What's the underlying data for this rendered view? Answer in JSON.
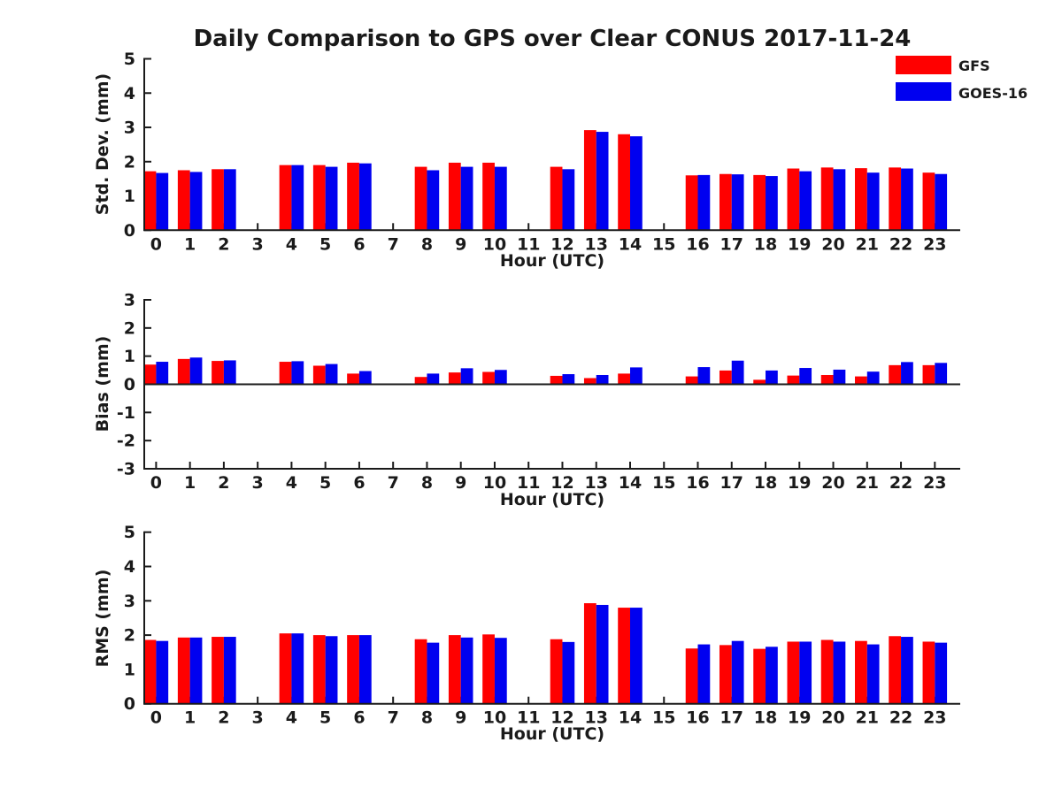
{
  "figure": {
    "title": "Daily Comparison to GPS over Clear CONUS 2017-11-24",
    "legend": {
      "items": [
        {
          "label": "GFS",
          "color": "#ff0000"
        },
        {
          "label": "GOES-16",
          "color": "#0000f0"
        }
      ]
    }
  },
  "colors": {
    "gfs": "#ff0000",
    "goes16": "#0000f0",
    "axis": "#1a1a1a",
    "background": "#ffffff"
  },
  "chart_data": [
    {
      "type": "bar",
      "title": "",
      "ylabel": "Std. Dev. (mm)",
      "xlabel": "Hour (UTC)",
      "ylim": [
        0,
        5
      ],
      "yticks": [
        0,
        1,
        2,
        3,
        4,
        5
      ],
      "grid": false,
      "legend_position": "top-right",
      "categories": [
        "0",
        "1",
        "2",
        "3",
        "4",
        "5",
        "6",
        "7",
        "8",
        "9",
        "10",
        "11",
        "12",
        "13",
        "14",
        "15",
        "16",
        "17",
        "18",
        "19",
        "20",
        "21",
        "22",
        "23"
      ],
      "series": [
        {
          "name": "GFS",
          "color": "#ff0000",
          "values": [
            1.72,
            1.75,
            1.78,
            null,
            1.9,
            1.9,
            1.97,
            null,
            1.85,
            1.97,
            1.97,
            null,
            1.85,
            2.92,
            2.8,
            null,
            1.6,
            1.64,
            1.61,
            1.8,
            1.83,
            1.81,
            1.83,
            1.68
          ]
        },
        {
          "name": "GOES-16",
          "color": "#0000f0",
          "values": [
            1.67,
            1.7,
            1.78,
            null,
            1.9,
            1.85,
            1.95,
            null,
            1.75,
            1.85,
            1.85,
            null,
            1.78,
            2.87,
            2.74,
            null,
            1.61,
            1.63,
            1.58,
            1.72,
            1.78,
            1.68,
            1.8,
            1.64
          ]
        }
      ]
    },
    {
      "type": "bar",
      "title": "",
      "ylabel": "Bias (mm)",
      "xlabel": "Hour (UTC)",
      "ylim": [
        -3,
        3
      ],
      "yticks": [
        -3,
        -2,
        -1,
        0,
        1,
        2,
        3
      ],
      "grid": false,
      "categories": [
        "0",
        "1",
        "2",
        "3",
        "4",
        "5",
        "6",
        "7",
        "8",
        "9",
        "10",
        "11",
        "12",
        "13",
        "14",
        "15",
        "16",
        "17",
        "18",
        "19",
        "20",
        "21",
        "22",
        "23"
      ],
      "series": [
        {
          "name": "GFS",
          "color": "#ff0000",
          "values": [
            0.7,
            0.9,
            0.83,
            null,
            0.8,
            0.66,
            0.38,
            null,
            0.26,
            0.42,
            0.44,
            null,
            0.3,
            0.22,
            0.38,
            null,
            0.28,
            0.49,
            0.16,
            0.31,
            0.33,
            0.28,
            0.68,
            0.68
          ]
        },
        {
          "name": "GOES-16",
          "color": "#0000f0",
          "values": [
            0.8,
            0.95,
            0.85,
            null,
            0.82,
            0.72,
            0.47,
            null,
            0.38,
            0.57,
            0.51,
            null,
            0.36,
            0.33,
            0.6,
            null,
            0.61,
            0.84,
            0.49,
            0.58,
            0.52,
            0.45,
            0.79,
            0.76
          ]
        }
      ]
    },
    {
      "type": "bar",
      "title": "",
      "ylabel": "RMS (mm)",
      "xlabel": "Hour (UTC)",
      "ylim": [
        0,
        5
      ],
      "yticks": [
        0,
        1,
        2,
        3,
        4,
        5
      ],
      "grid": false,
      "categories": [
        "0",
        "1",
        "2",
        "3",
        "4",
        "5",
        "6",
        "7",
        "8",
        "9",
        "10",
        "11",
        "12",
        "13",
        "14",
        "15",
        "16",
        "17",
        "18",
        "19",
        "20",
        "21",
        "22",
        "23"
      ],
      "series": [
        {
          "name": "GFS",
          "color": "#ff0000",
          "values": [
            1.86,
            1.93,
            1.95,
            null,
            2.05,
            2.0,
            2.0,
            null,
            1.88,
            2.0,
            2.02,
            null,
            1.88,
            2.93,
            2.8,
            null,
            1.61,
            1.71,
            1.6,
            1.81,
            1.86,
            1.83,
            1.97,
            1.81
          ]
        },
        {
          "name": "GOES-16",
          "color": "#0000f0",
          "values": [
            1.83,
            1.93,
            1.95,
            null,
            2.05,
            1.97,
            2.0,
            null,
            1.78,
            1.93,
            1.92,
            null,
            1.8,
            2.88,
            2.8,
            null,
            1.73,
            1.83,
            1.66,
            1.81,
            1.81,
            1.73,
            1.95,
            1.78
          ]
        }
      ]
    }
  ]
}
